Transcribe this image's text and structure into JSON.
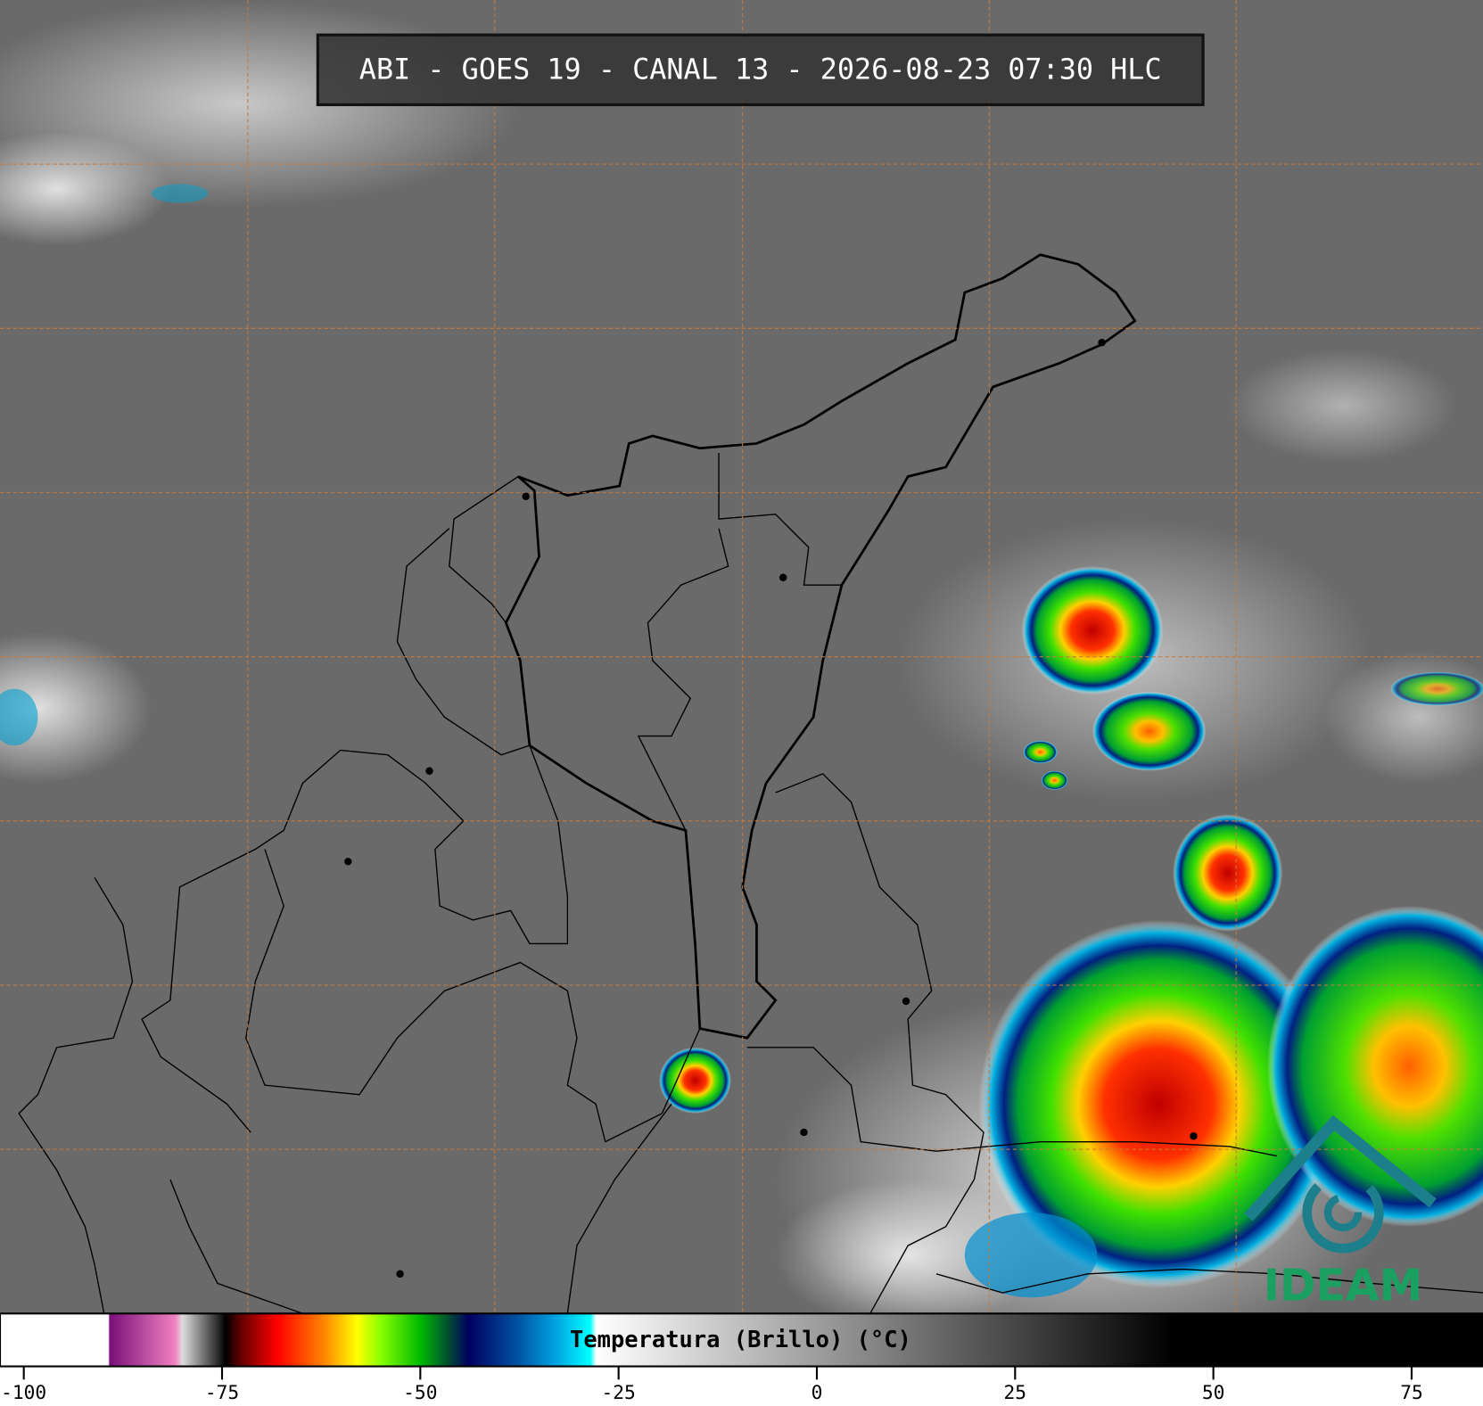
{
  "header": {
    "title": "ABI - GOES 19 - CANAL 13 - 2026-08-23 07:30 HLC"
  },
  "colorbar": {
    "label": "Temperatura (Brillo) (°C)",
    "lim": [
      -103,
      84
    ],
    "ticks": [
      -100,
      -75,
      -50,
      -25,
      0,
      25,
      50,
      75
    ]
  },
  "logo": {
    "text": "IDEAM"
  }
}
